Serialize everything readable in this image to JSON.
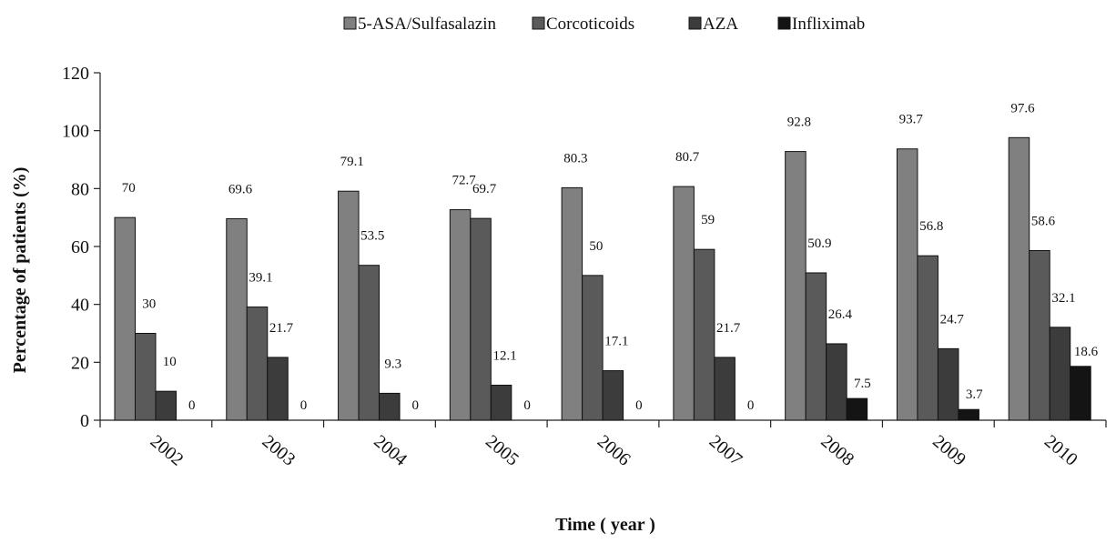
{
  "chart_data": {
    "type": "bar",
    "title": "",
    "xlabel": "Time ( year )",
    "ylabel": "Percentage of patients (%)",
    "ylim": [
      0,
      120
    ],
    "yticks": [
      0,
      20,
      40,
      60,
      80,
      100,
      120
    ],
    "grid": false,
    "legend_position": "top",
    "categories": [
      "2002",
      "2003",
      "2004",
      "2005",
      "2006",
      "2007",
      "2008",
      "2009",
      "2010"
    ],
    "series": [
      {
        "name": "5-ASA/Sulfasalazin",
        "color": "#808080",
        "values": [
          70,
          69.6,
          79.1,
          72.7,
          80.3,
          80.7,
          92.8,
          93.7,
          97.6
        ],
        "labels": [
          "70",
          "69.6",
          "79.1",
          "72.7",
          "80.3",
          "80.7",
          "92.8",
          "93.7",
          "97.6"
        ]
      },
      {
        "name": "Corcoticoids",
        "color": "#5a5a5a",
        "values": [
          30,
          39.1,
          53.5,
          69.7,
          50,
          59,
          50.9,
          56.8,
          58.6
        ],
        "labels": [
          "30",
          "39.1",
          "53.5",
          "69.7",
          "50",
          "59",
          "50.9",
          "56.8",
          "58.6"
        ]
      },
      {
        "name": "AZA",
        "color": "#3c3c3c",
        "values": [
          10,
          21.7,
          9.3,
          12.1,
          17.1,
          21.7,
          26.4,
          24.7,
          32.1
        ],
        "labels": [
          "10",
          "21.7",
          "9.3",
          "12.1",
          "17.1",
          "21.7",
          "26.4",
          "24.7",
          "32.1"
        ]
      },
      {
        "name": "Infliximab",
        "color": "#141414",
        "values": [
          0,
          0,
          0,
          0,
          0,
          0,
          7.5,
          3.7,
          18.6
        ],
        "labels": [
          "0",
          "0",
          "0",
          "0",
          "0",
          "0",
          "7.5",
          "3.7",
          "18.6"
        ]
      }
    ]
  }
}
